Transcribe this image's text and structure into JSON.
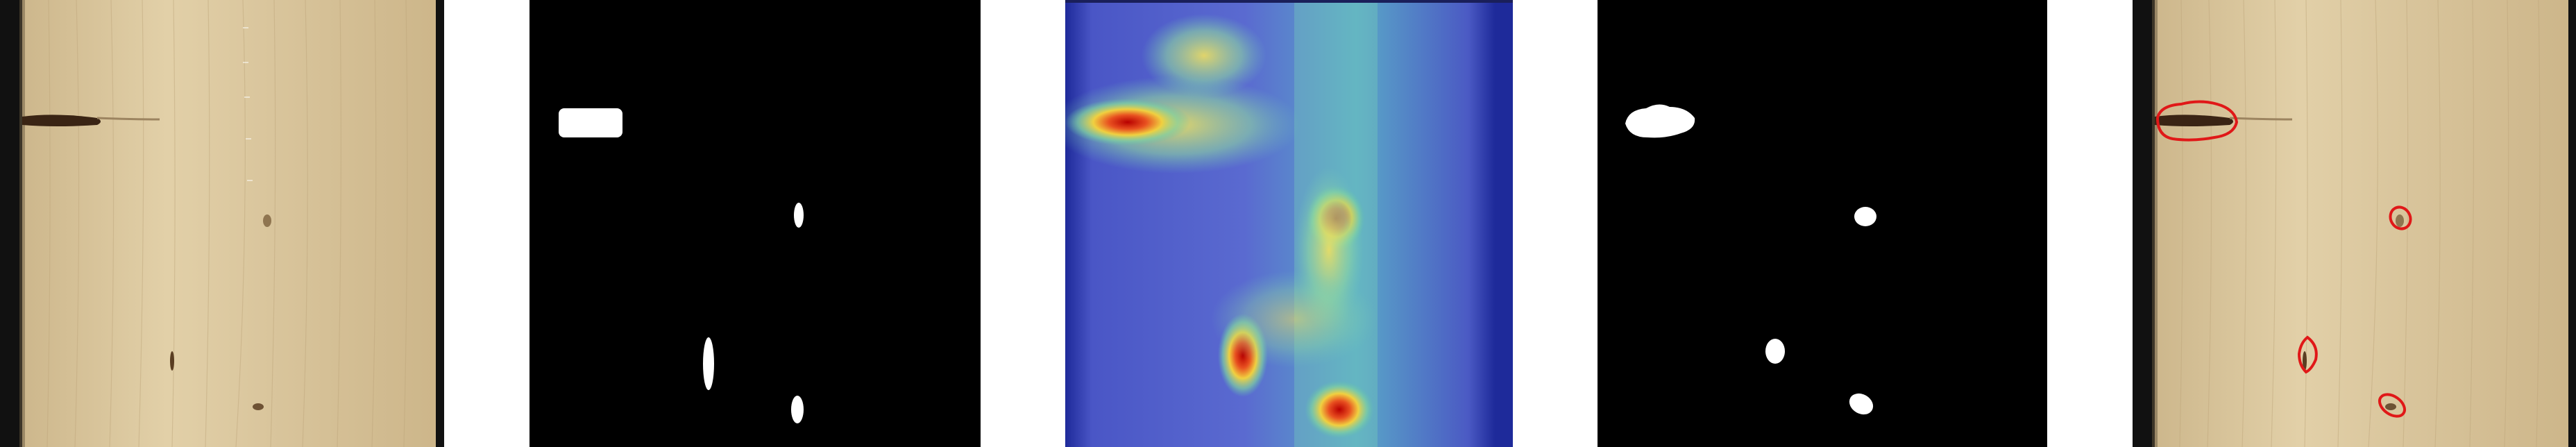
{
  "figure": {
    "panels": [
      {
        "id": "input-image",
        "kind": "photograph"
      },
      {
        "id": "ground-truth-mask",
        "kind": "binary-mask"
      },
      {
        "id": "attention-heatmap",
        "kind": "heatmap"
      },
      {
        "id": "predicted-mask",
        "kind": "binary-mask"
      },
      {
        "id": "overlay-result",
        "kind": "photograph-with-contours"
      }
    ],
    "colors": {
      "wood": "#dcc8a0",
      "mask_bg": "#000000",
      "mask_fg": "#ffffff",
      "heat_low": "#4b55c8",
      "heat_high": "#c80000",
      "contour": "#e01818"
    }
  }
}
